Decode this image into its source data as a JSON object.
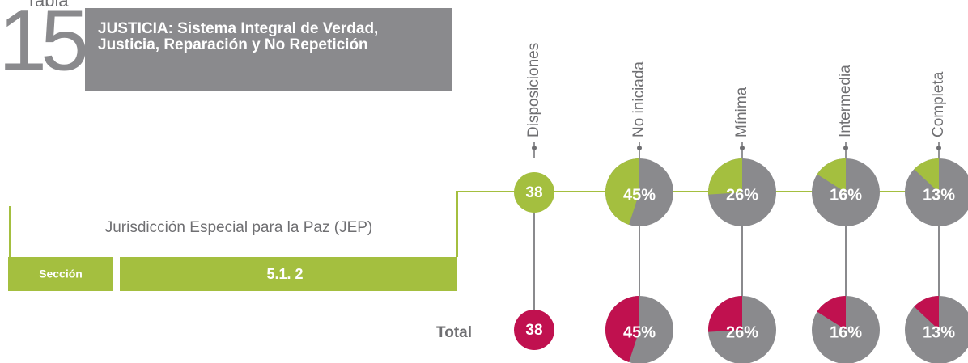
{
  "header": {
    "label": "Tabla",
    "number": "15",
    "title": "JUSTICIA: Sistema Integral de Verdad, Justicia, Reparación y No Repetición"
  },
  "columns": [
    "Disposiciones",
    "No iniciada",
    "Mínima",
    "Intermedia",
    "Completa"
  ],
  "rows": [
    {
      "name": "Jurisdicción Especial para la Paz (JEP)",
      "section_label": "Sección",
      "section": "5.1. 2",
      "count": 38,
      "values": [
        45,
        26,
        16,
        13
      ],
      "value_labels": [
        "45%",
        "26%",
        "16%",
        "13%"
      ]
    }
  ],
  "total": {
    "label": "Total",
    "count": 38,
    "values": [
      45,
      26,
      16,
      13
    ],
    "value_labels": [
      "45%",
      "26%",
      "16%",
      "13%"
    ]
  }
}
